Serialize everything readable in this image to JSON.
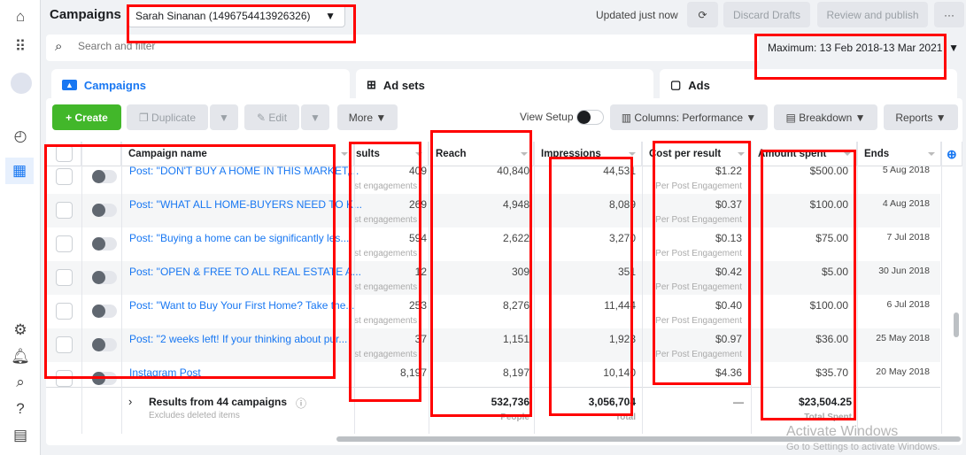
{
  "header": {
    "title": "Campaigns",
    "account": "Sarah Sinanan (1496754413926326)",
    "updated": "Updated just now",
    "discard": "Discard Drafts",
    "review": "Review and publish",
    "more": "···"
  },
  "search": {
    "placeholder": "Search and filter",
    "date_range": "Maximum: 13 Feb 2018-13 Mar 2021"
  },
  "tabs": [
    {
      "label": "Campaigns",
      "active": true
    },
    {
      "label": "Ad sets"
    },
    {
      "label": "Ads"
    }
  ],
  "toolbar": {
    "create": "Create",
    "duplicate": "Duplicate",
    "edit": "Edit",
    "more": "More",
    "view_setup": "View Setup",
    "columns": "Columns: Performance",
    "breakdown": "Breakdown",
    "reports": "Reports"
  },
  "columns": [
    "Campaign name",
    "sults",
    "Reach",
    "Impressions",
    "Cost per result",
    "Amount spent",
    "Ends"
  ],
  "rows": [
    {
      "name": "Post: \"DON'T BUY A HOME IN THIS MARKET,...",
      "results": "409",
      "results_sub": "st engagements",
      "reach": "40,840",
      "impressions": "44,531",
      "cost": "$1.22",
      "cost_sub": "Per Post Engagement",
      "spent": "$500.00",
      "ends": "5 Aug 2018"
    },
    {
      "name": "Post: \"WHAT ALL HOME-BUYERS NEED TO K...",
      "results": "269",
      "results_sub": "st engagements",
      "reach": "4,948",
      "impressions": "8,089",
      "cost": "$0.37",
      "cost_sub": "Per Post Engagement",
      "spent": "$100.00",
      "ends": "4 Aug 2018"
    },
    {
      "name": "Post: \"Buying a home can be significantly les...",
      "results": "594",
      "results_sub": "st engagements",
      "reach": "2,622",
      "impressions": "3,270",
      "cost": "$0.13",
      "cost_sub": "Per Post Engagement",
      "spent": "$75.00",
      "ends": "7 Jul 2018"
    },
    {
      "name": "Post: \"OPEN & FREE TO ALL REAL ESTATE A...",
      "results": "12",
      "results_sub": "st engagements",
      "reach": "309",
      "impressions": "351",
      "cost": "$0.42",
      "cost_sub": "Per Post Engagement",
      "spent": "$5.00",
      "ends": "30 Jun 2018"
    },
    {
      "name": "Post: \"Want to Buy Your First Home? Take the...",
      "results": "253",
      "results_sub": "st engagements",
      "reach": "8,276",
      "impressions": "11,444",
      "cost": "$0.40",
      "cost_sub": "Per Post Engagement",
      "spent": "$100.00",
      "ends": "6 Jul 2018"
    },
    {
      "name": "Post: \"2 weeks left! If your thinking about pur...",
      "results": "37",
      "results_sub": "st engagements",
      "reach": "1,151",
      "impressions": "1,923",
      "cost": "$0.97",
      "cost_sub": "Per Post Engagement",
      "spent": "$36.00",
      "ends": "25 May 2018"
    },
    {
      "name": "Instagram Post",
      "results": "8,197",
      "results_sub": "",
      "reach": "8,197",
      "impressions": "10,140",
      "cost": "$4.36",
      "cost_sub": "",
      "spent": "$35.70",
      "ends": "20 May 2018"
    }
  ],
  "footer": {
    "label": "Results from 44 campaigns",
    "note": "Excludes deleted items",
    "reach": "532,736",
    "reach_sub": "People",
    "impressions": "3,056,704",
    "impressions_sub": "Total",
    "cost": "—",
    "spent": "$23,504.25",
    "spent_sub": "Total Spent"
  },
  "watermark": {
    "title": "Activate Windows",
    "sub": "Go to Settings to activate Windows."
  },
  "colors": {
    "accent": "#1877f2",
    "create": "#42b72a",
    "annotation": "#ff0000"
  }
}
